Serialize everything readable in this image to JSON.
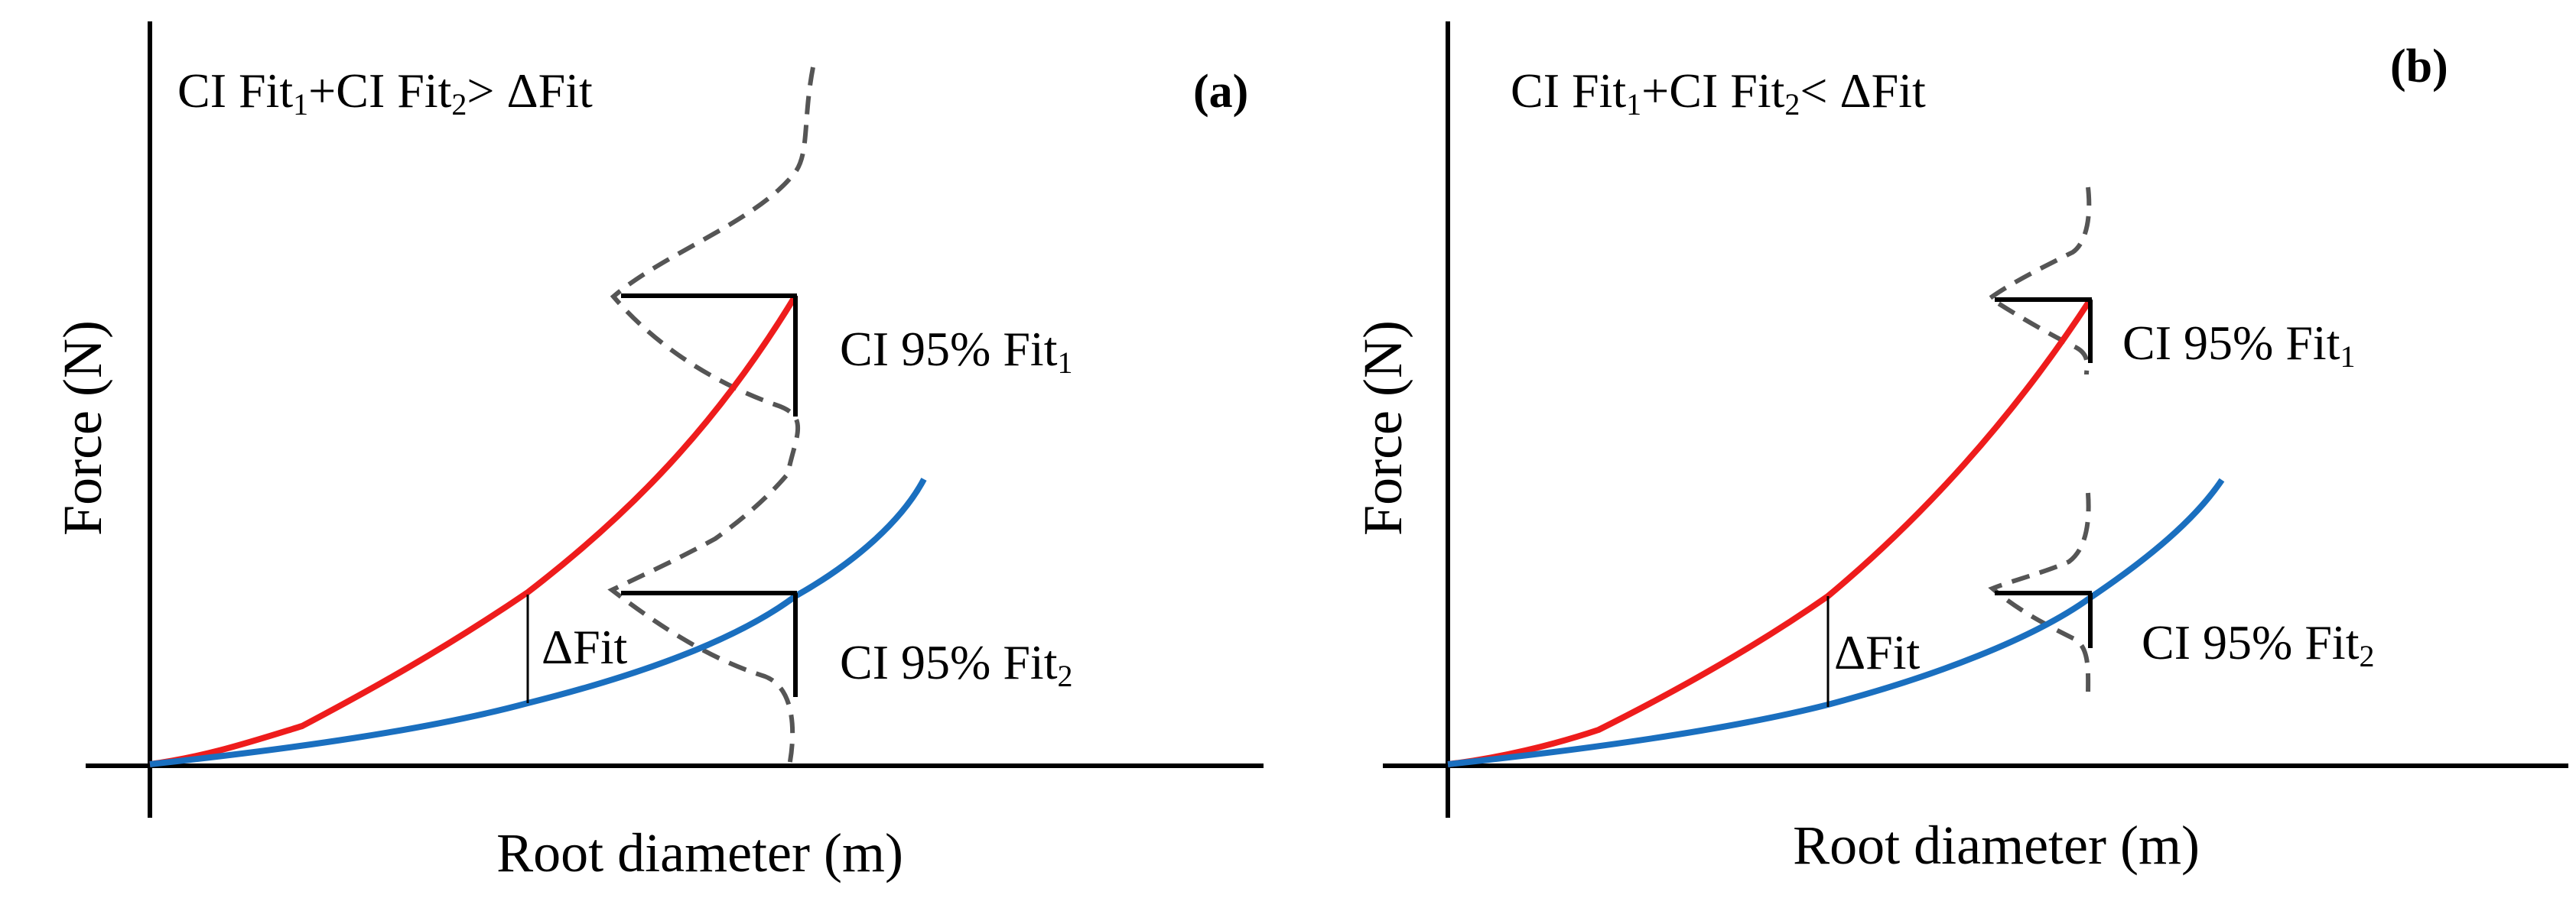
{
  "colors": {
    "fit1": "#ee1c1c",
    "fit2": "#1a6fbf",
    "axis": "#000000",
    "ci_dashed": "#555555"
  },
  "panels": [
    {
      "tag": "(a)",
      "condition": {
        "pre": "CI Fit",
        "s1": "1",
        "mid": "+CI Fit",
        "s2": "2",
        "post": "> ΔFit"
      },
      "ylabel": "Force (N)",
      "xlabel": "Root diameter (m)",
      "delta_label": "ΔFit",
      "ci1": {
        "pre": "CI 95% Fit",
        "sub": "1"
      },
      "ci2": {
        "pre": "CI 95% Fit",
        "sub": "2"
      }
    },
    {
      "tag": "(b)",
      "condition": {
        "pre": "CI Fit",
        "s1": "1",
        "mid": "+CI Fit",
        "s2": "2",
        "post": "< ΔFit"
      },
      "ylabel": "Force (N)",
      "xlabel": "Root diameter (m)",
      "delta_label": "ΔFit",
      "ci1": {
        "pre": "CI 95% Fit",
        "sub": "1"
      },
      "ci2": {
        "pre": "CI 95% Fit",
        "sub": "2"
      }
    }
  ]
}
